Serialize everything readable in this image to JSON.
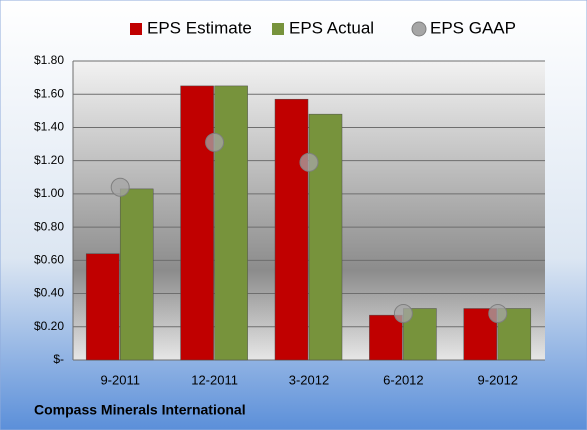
{
  "chart_data": {
    "type": "bar",
    "footer": "Compass Minerals International",
    "categories": [
      "9-2011",
      "12-2011",
      "3-2012",
      "6-2012",
      "9-2012"
    ],
    "series": [
      {
        "name": "EPS Estimate",
        "color": "#c00000",
        "values": [
          0.64,
          1.65,
          1.57,
          0.27,
          0.31
        ]
      },
      {
        "name": "EPS Actual",
        "color": "#77933c",
        "values": [
          1.03,
          1.65,
          1.48,
          0.31,
          0.31
        ]
      },
      {
        "name": "EPS GAAP",
        "color": "#a6a6a6",
        "type": "scatter",
        "values": [
          1.04,
          1.31,
          1.19,
          0.28,
          0.28
        ]
      }
    ],
    "ylim": [
      0,
      1.8
    ],
    "yticks": [
      {
        "value": 0,
        "label": "$-"
      },
      {
        "value": 0.2,
        "label": "$0.20"
      },
      {
        "value": 0.4,
        "label": "$0.40"
      },
      {
        "value": 0.6,
        "label": "$0.60"
      },
      {
        "value": 0.8,
        "label": "$0.80"
      },
      {
        "value": 1.0,
        "label": "$1.00"
      },
      {
        "value": 1.2,
        "label": "$1.20"
      },
      {
        "value": 1.4,
        "label": "$1.40"
      },
      {
        "value": 1.6,
        "label": "$1.60"
      },
      {
        "value": 1.8,
        "label": "$1.80"
      }
    ],
    "grid": true,
    "legend": "top"
  }
}
